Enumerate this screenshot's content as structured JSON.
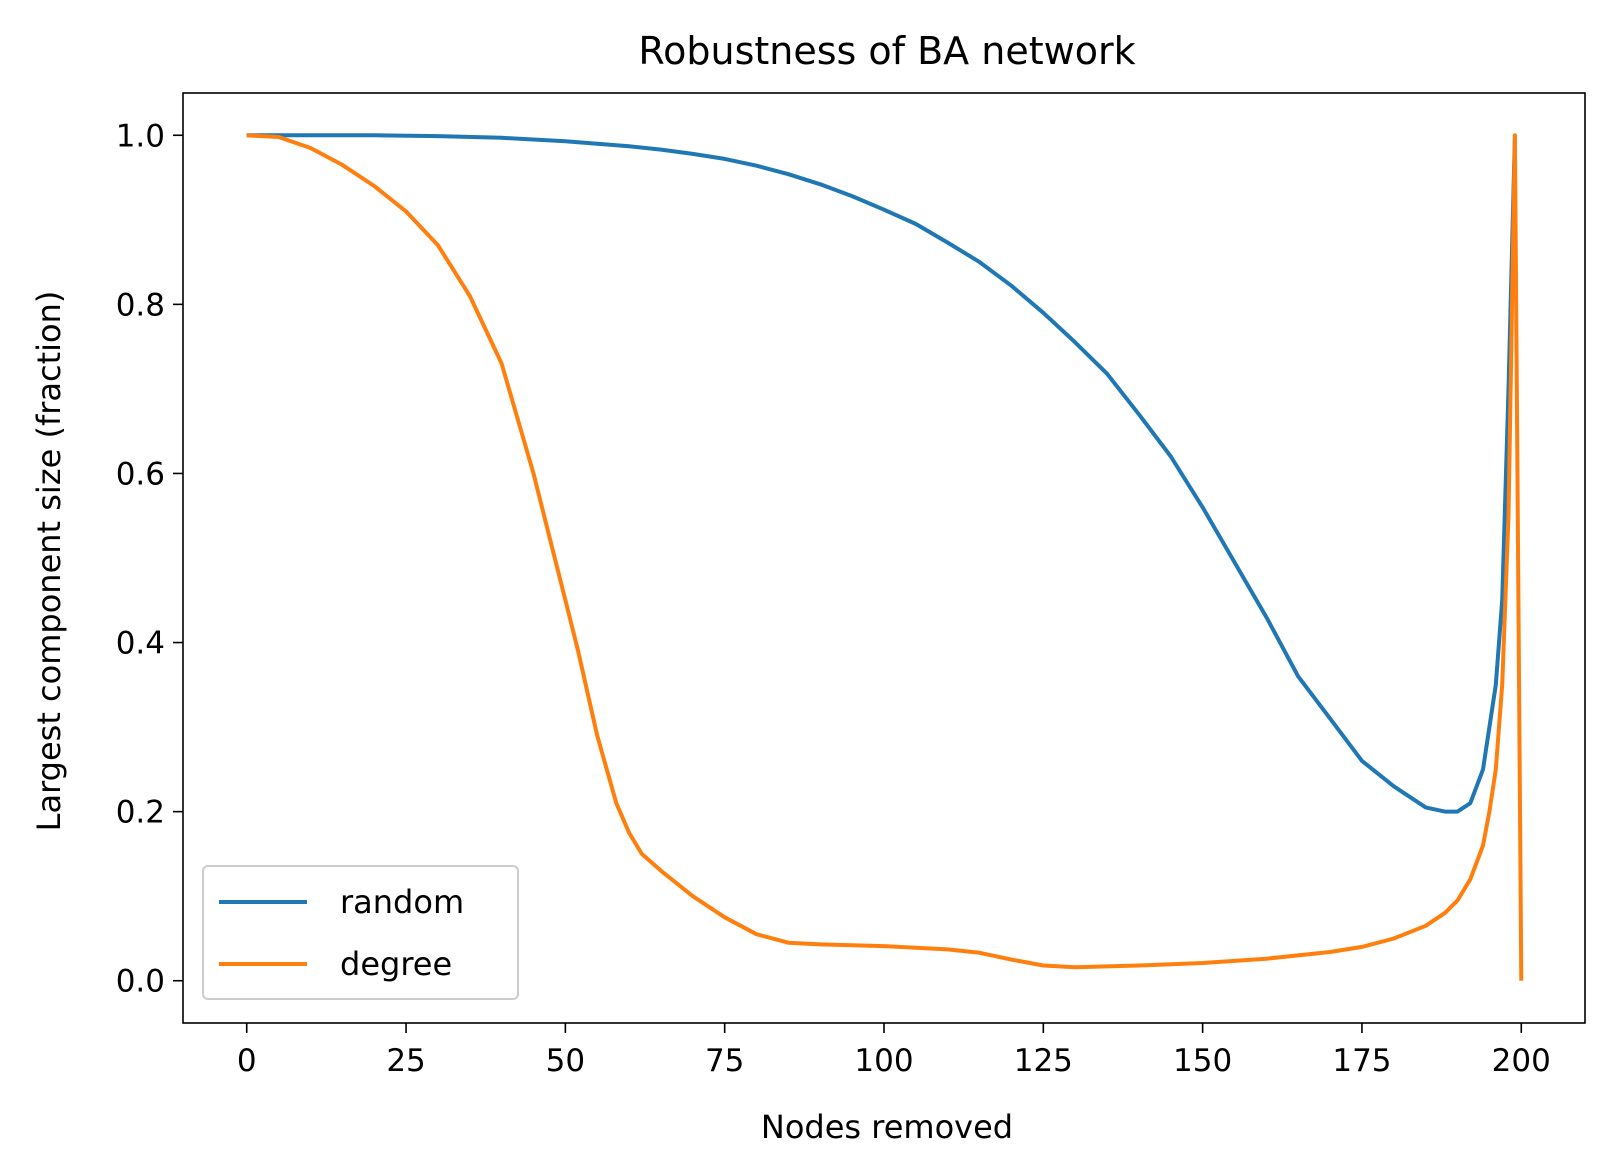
{
  "chart_data": {
    "type": "line",
    "title": "Robustness of BA network",
    "xlabel": "Nodes removed",
    "ylabel": "Largest component size (fraction)",
    "xlim": [
      -10,
      210
    ],
    "ylim": [
      -0.05,
      1.05
    ],
    "xticks": [
      0,
      25,
      50,
      75,
      100,
      125,
      150,
      175,
      200
    ],
    "xtick_labels": [
      "0",
      "25",
      "50",
      "75",
      "100",
      "125",
      "150",
      "175",
      "200"
    ],
    "yticks": [
      0.0,
      0.2,
      0.4,
      0.6,
      0.8,
      1.0
    ],
    "ytick_labels": [
      "0.0",
      "0.2",
      "0.4",
      "0.6",
      "0.8",
      "1.0"
    ],
    "grid": false,
    "legend_position": "lower-left",
    "series": [
      {
        "name": "random",
        "color": "#1f77b4",
        "x": [
          0,
          10,
          20,
          30,
          40,
          50,
          55,
          60,
          65,
          70,
          75,
          80,
          85,
          90,
          95,
          100,
          105,
          110,
          115,
          120,
          125,
          130,
          135,
          140,
          145,
          150,
          155,
          160,
          165,
          170,
          175,
          180,
          185,
          188,
          190,
          192,
          194,
          196,
          197,
          198,
          199
        ],
        "y": [
          1.0,
          1.0,
          1.0,
          0.999,
          0.997,
          0.993,
          0.99,
          0.987,
          0.983,
          0.978,
          0.972,
          0.964,
          0.954,
          0.942,
          0.928,
          0.912,
          0.895,
          0.873,
          0.85,
          0.822,
          0.79,
          0.755,
          0.718,
          0.67,
          0.62,
          0.56,
          0.495,
          0.43,
          0.36,
          0.31,
          0.26,
          0.23,
          0.205,
          0.2,
          0.2,
          0.21,
          0.25,
          0.35,
          0.45,
          0.7,
          1.0
        ]
      },
      {
        "name": "degree",
        "color": "#ff7f0e",
        "x": [
          0,
          5,
          10,
          15,
          20,
          25,
          30,
          35,
          40,
          45,
          48,
          50,
          52,
          55,
          58,
          60,
          62,
          65,
          70,
          75,
          80,
          85,
          90,
          100,
          110,
          115,
          120,
          125,
          130,
          140,
          150,
          160,
          170,
          175,
          180,
          185,
          188,
          190,
          192,
          194,
          195,
          196,
          197,
          198,
          199,
          200
        ],
        "y": [
          1.0,
          0.998,
          0.985,
          0.965,
          0.94,
          0.91,
          0.87,
          0.81,
          0.73,
          0.6,
          0.51,
          0.45,
          0.39,
          0.29,
          0.21,
          0.175,
          0.15,
          0.13,
          0.1,
          0.075,
          0.055,
          0.045,
          0.043,
          0.041,
          0.037,
          0.033,
          0.025,
          0.018,
          0.016,
          0.018,
          0.021,
          0.026,
          0.034,
          0.04,
          0.05,
          0.065,
          0.08,
          0.095,
          0.12,
          0.16,
          0.2,
          0.25,
          0.35,
          0.55,
          1.0,
          0.0
        ]
      }
    ]
  }
}
